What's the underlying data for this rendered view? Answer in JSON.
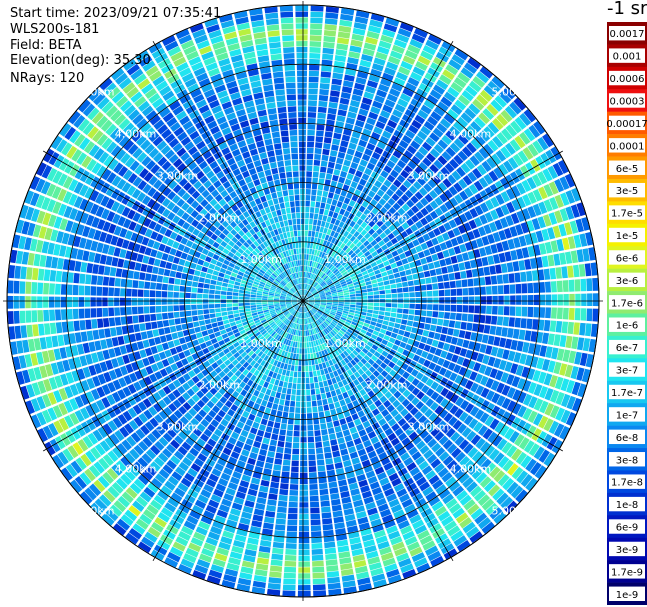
{
  "header": {
    "start_time": "Start time: 2023/09/21 07:35:41",
    "site": "WLS200s-181",
    "field": "Field: BETA",
    "elevation": "Elevation(deg): 35.30",
    "nrays": "NRays: 120"
  },
  "colorbar": {
    "unit": "-1 sr",
    "labels": [
      "0.0017",
      "0.001",
      "0.0006",
      "0.0003",
      "0.00017",
      "0.0001",
      "6e-5",
      "3e-5",
      "1.7e-5",
      "1e-5",
      "6e-6",
      "3e-6",
      "1.7e-6",
      "1e-6",
      "6e-7",
      "3e-7",
      "1.7e-7",
      "1e-7",
      "6e-8",
      "3e-8",
      "1.7e-8",
      "1e-8",
      "6e-9",
      "3e-9",
      "1.7e-9",
      "1e-9"
    ],
    "colors": [
      "#8a0000",
      "#a80000",
      "#d00000",
      "#ee1010",
      "#ff5a00",
      "#ff7d00",
      "#ff9a00",
      "#ffbb00",
      "#ffdd00",
      "#f5f100",
      "#e0f520",
      "#b8f040",
      "#90eb70",
      "#5ef0a0",
      "#38f0d0",
      "#20e5f0",
      "#18c8f0",
      "#10a8f0",
      "#0a88f0",
      "#0066e8",
      "#0048e0",
      "#0030d0",
      "#0018c0",
      "#0008b0",
      "#000090",
      "#00006a"
    ]
  },
  "chart_data": {
    "type": "polar-ppi",
    "title": "",
    "n_rays": 120,
    "max_range_km": 5.0,
    "rings_km": [
      1,
      2,
      3,
      4,
      5
    ],
    "range_labels": [
      "1.00km",
      "2.00km",
      "3.00km",
      "4.00km",
      "5.00km"
    ],
    "azimuth_lines_deg": [
      0,
      30,
      60,
      90,
      120,
      150,
      180,
      210,
      240,
      270,
      300,
      330
    ],
    "field": "BETA",
    "scale": "log",
    "value_range": [
      1e-09,
      0.0017
    ],
    "radial_profile": [
      {
        "range_km": 0.0,
        "beta": 1.7e-07
      },
      {
        "range_km": 1.0,
        "beta": 1.7e-07
      },
      {
        "range_km": 2.0,
        "beta": 6e-08
      },
      {
        "range_km": 3.0,
        "beta": 3e-08
      },
      {
        "range_km": 4.0,
        "beta": 6e-08
      },
      {
        "range_km": 4.6,
        "beta": 1.7e-06
      },
      {
        "range_km": 4.9,
        "beta": 3e-08
      }
    ]
  }
}
